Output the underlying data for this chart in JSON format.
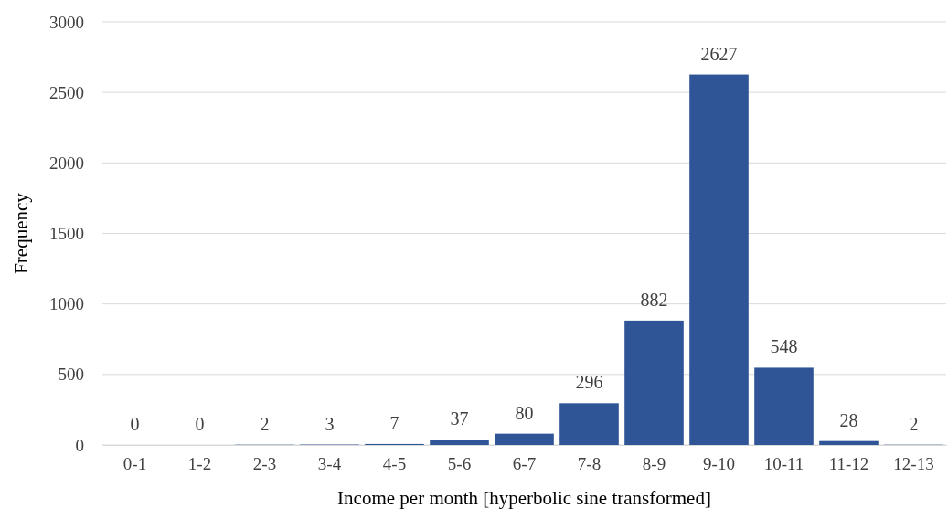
{
  "chart_data": {
    "type": "bar",
    "xlabel": "Income per month [hyperbolic sine transformed]",
    "ylabel": "Frequency",
    "categories": [
      "0-1",
      "1-2",
      "2-3",
      "3-4",
      "4-5",
      "5-6",
      "6-7",
      "7-8",
      "8-9",
      "9-10",
      "10-11",
      "11-12",
      "12-13"
    ],
    "values": [
      0,
      0,
      2,
      3,
      7,
      37,
      80,
      296,
      882,
      2627,
      548,
      28,
      2
    ],
    "color": "#2f5597",
    "ylim": [
      0,
      3000
    ],
    "yticks": [
      0,
      500,
      1000,
      1500,
      2000,
      2500,
      3000
    ],
    "grid": "y",
    "data_labels": true,
    "legend": false
  }
}
